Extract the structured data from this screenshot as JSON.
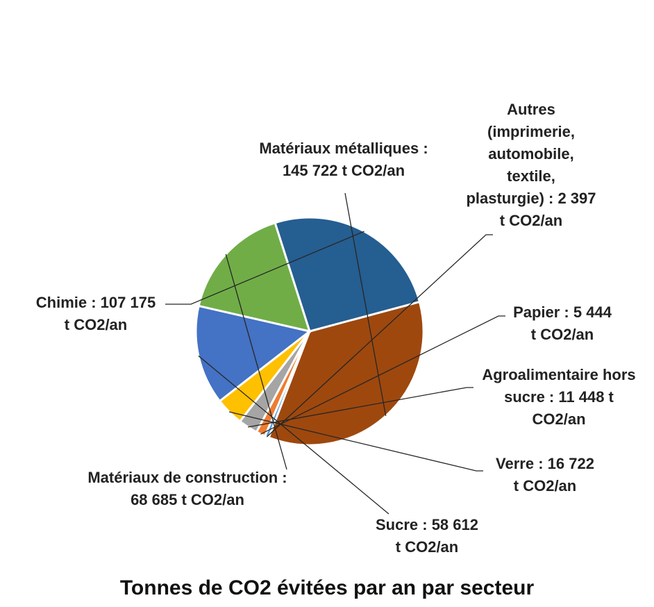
{
  "chart_data": {
    "type": "pie",
    "title": "Tonnes de CO2 évitées par an par secteur",
    "slices": [
      {
        "name": "Matériaux métalliques",
        "value": 145722,
        "color": "#9E480E",
        "label_lines": [
          "Matériaux métalliques :",
          "145 722 t CO2/an"
        ]
      },
      {
        "name": "Autres (imprimerie, automobile, textile, plasturgie)",
        "value": 2397,
        "color": "#5B9BD5",
        "label_lines": [
          "Autres",
          "(imprimerie,",
          "automobile,",
          "textile,",
          "plasturgie) : 2 397",
          "t CO2/an"
        ]
      },
      {
        "name": "Papier",
        "value": 5444,
        "color": "#ED7D31",
        "label_lines": [
          "Papier : 5 444",
          "t CO2/an"
        ]
      },
      {
        "name": "Agroalimentaire hors sucre",
        "value": 11448,
        "color": "#A5A5A5",
        "label_lines": [
          "Agroalimentaire hors",
          "sucre : 11 448 t",
          "CO2/an"
        ]
      },
      {
        "name": "Verre",
        "value": 16722,
        "color": "#FFC000",
        "label_lines": [
          "Verre : 16 722",
          "t CO2/an"
        ]
      },
      {
        "name": "Sucre",
        "value": 58612,
        "color": "#4472C4",
        "label_lines": [
          "Sucre : 58 612",
          "t CO2/an"
        ]
      },
      {
        "name": "Matériaux de construction",
        "value": 68685,
        "color": "#70AD47",
        "label_lines": [
          "Matériaux de construction :",
          "68 685 t CO2/an"
        ]
      },
      {
        "name": "Chimie",
        "value": 107175,
        "color": "#255E91",
        "label_lines": [
          "Chimie : 107 175",
          "t CO2/an"
        ]
      }
    ],
    "legend": "none"
  }
}
